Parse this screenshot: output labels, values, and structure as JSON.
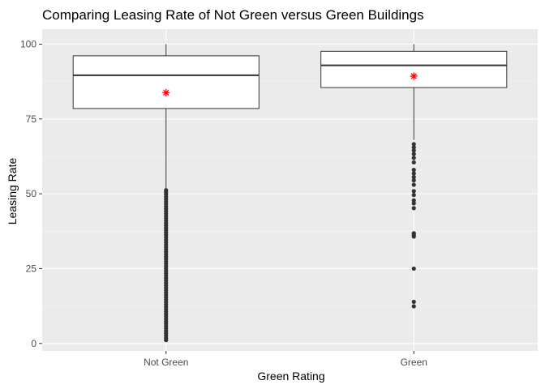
{
  "chart_data": {
    "type": "boxplot",
    "title": "Comparing Leasing Rate of Not Green versus Green Buildings",
    "xlabel": "Green Rating",
    "ylabel": "Leasing Rate",
    "categories": [
      "Not Green",
      "Green"
    ],
    "ylim": [
      -2.5,
      105
    ],
    "yticks": [
      0,
      25,
      50,
      75,
      100
    ],
    "ytick_labels": [
      "0",
      "25",
      "50",
      "75",
      "100"
    ],
    "grid": true,
    "series": [
      {
        "name": "Not Green",
        "whisker_low": 51.5,
        "q1": 78.5,
        "median": 89.6,
        "q3": 96.1,
        "whisker_high": 100,
        "mean": 83.8,
        "outliers": [
          51.2,
          50.5,
          49.8,
          49,
          48.2,
          47.4,
          46.6,
          45.8,
          45,
          44.2,
          43.4,
          42.6,
          41.8,
          41,
          40.2,
          39.4,
          38.6,
          37.8,
          37,
          36.2,
          35.4,
          34.6,
          33.8,
          33,
          32.2,
          31.4,
          30.6,
          29.8,
          29,
          28.2,
          27.4,
          26.6,
          25.8,
          25,
          24.2,
          23.4,
          22.6,
          21.8,
          21,
          20.2,
          19.4,
          18.6,
          17.8,
          17,
          16.2,
          15.4,
          14.6,
          13.8,
          13,
          12.2,
          11.4,
          10.6,
          9.8,
          9,
          8.2,
          7.4,
          6.6,
          5.8,
          5,
          4.2,
          3.4,
          2.6,
          1.8,
          1.1
        ]
      },
      {
        "name": "Green",
        "whisker_low": 68,
        "q1": 85.5,
        "median": 92.9,
        "q3": 97.6,
        "whisker_high": 100,
        "mean": 89.3,
        "outliers": [
          66.6,
          65.5,
          64.5,
          63.3,
          62,
          60.5,
          58,
          56.8,
          55.6,
          54.5,
          53,
          50.9,
          49.6,
          47.8,
          46.8,
          45.2,
          36.8,
          36.3,
          35.7,
          25,
          13.9,
          12.4
        ]
      }
    ],
    "colors": {
      "panel": "#EBEBEB",
      "grid_major": "#FFFFFF",
      "grid_minor": "#F5F5F5",
      "box_fill": "#FFFFFF",
      "box_stroke": "#333333",
      "point": "#333333",
      "mean_marker": "#FF0000"
    },
    "mean_marker_symbol": "asterisk"
  }
}
